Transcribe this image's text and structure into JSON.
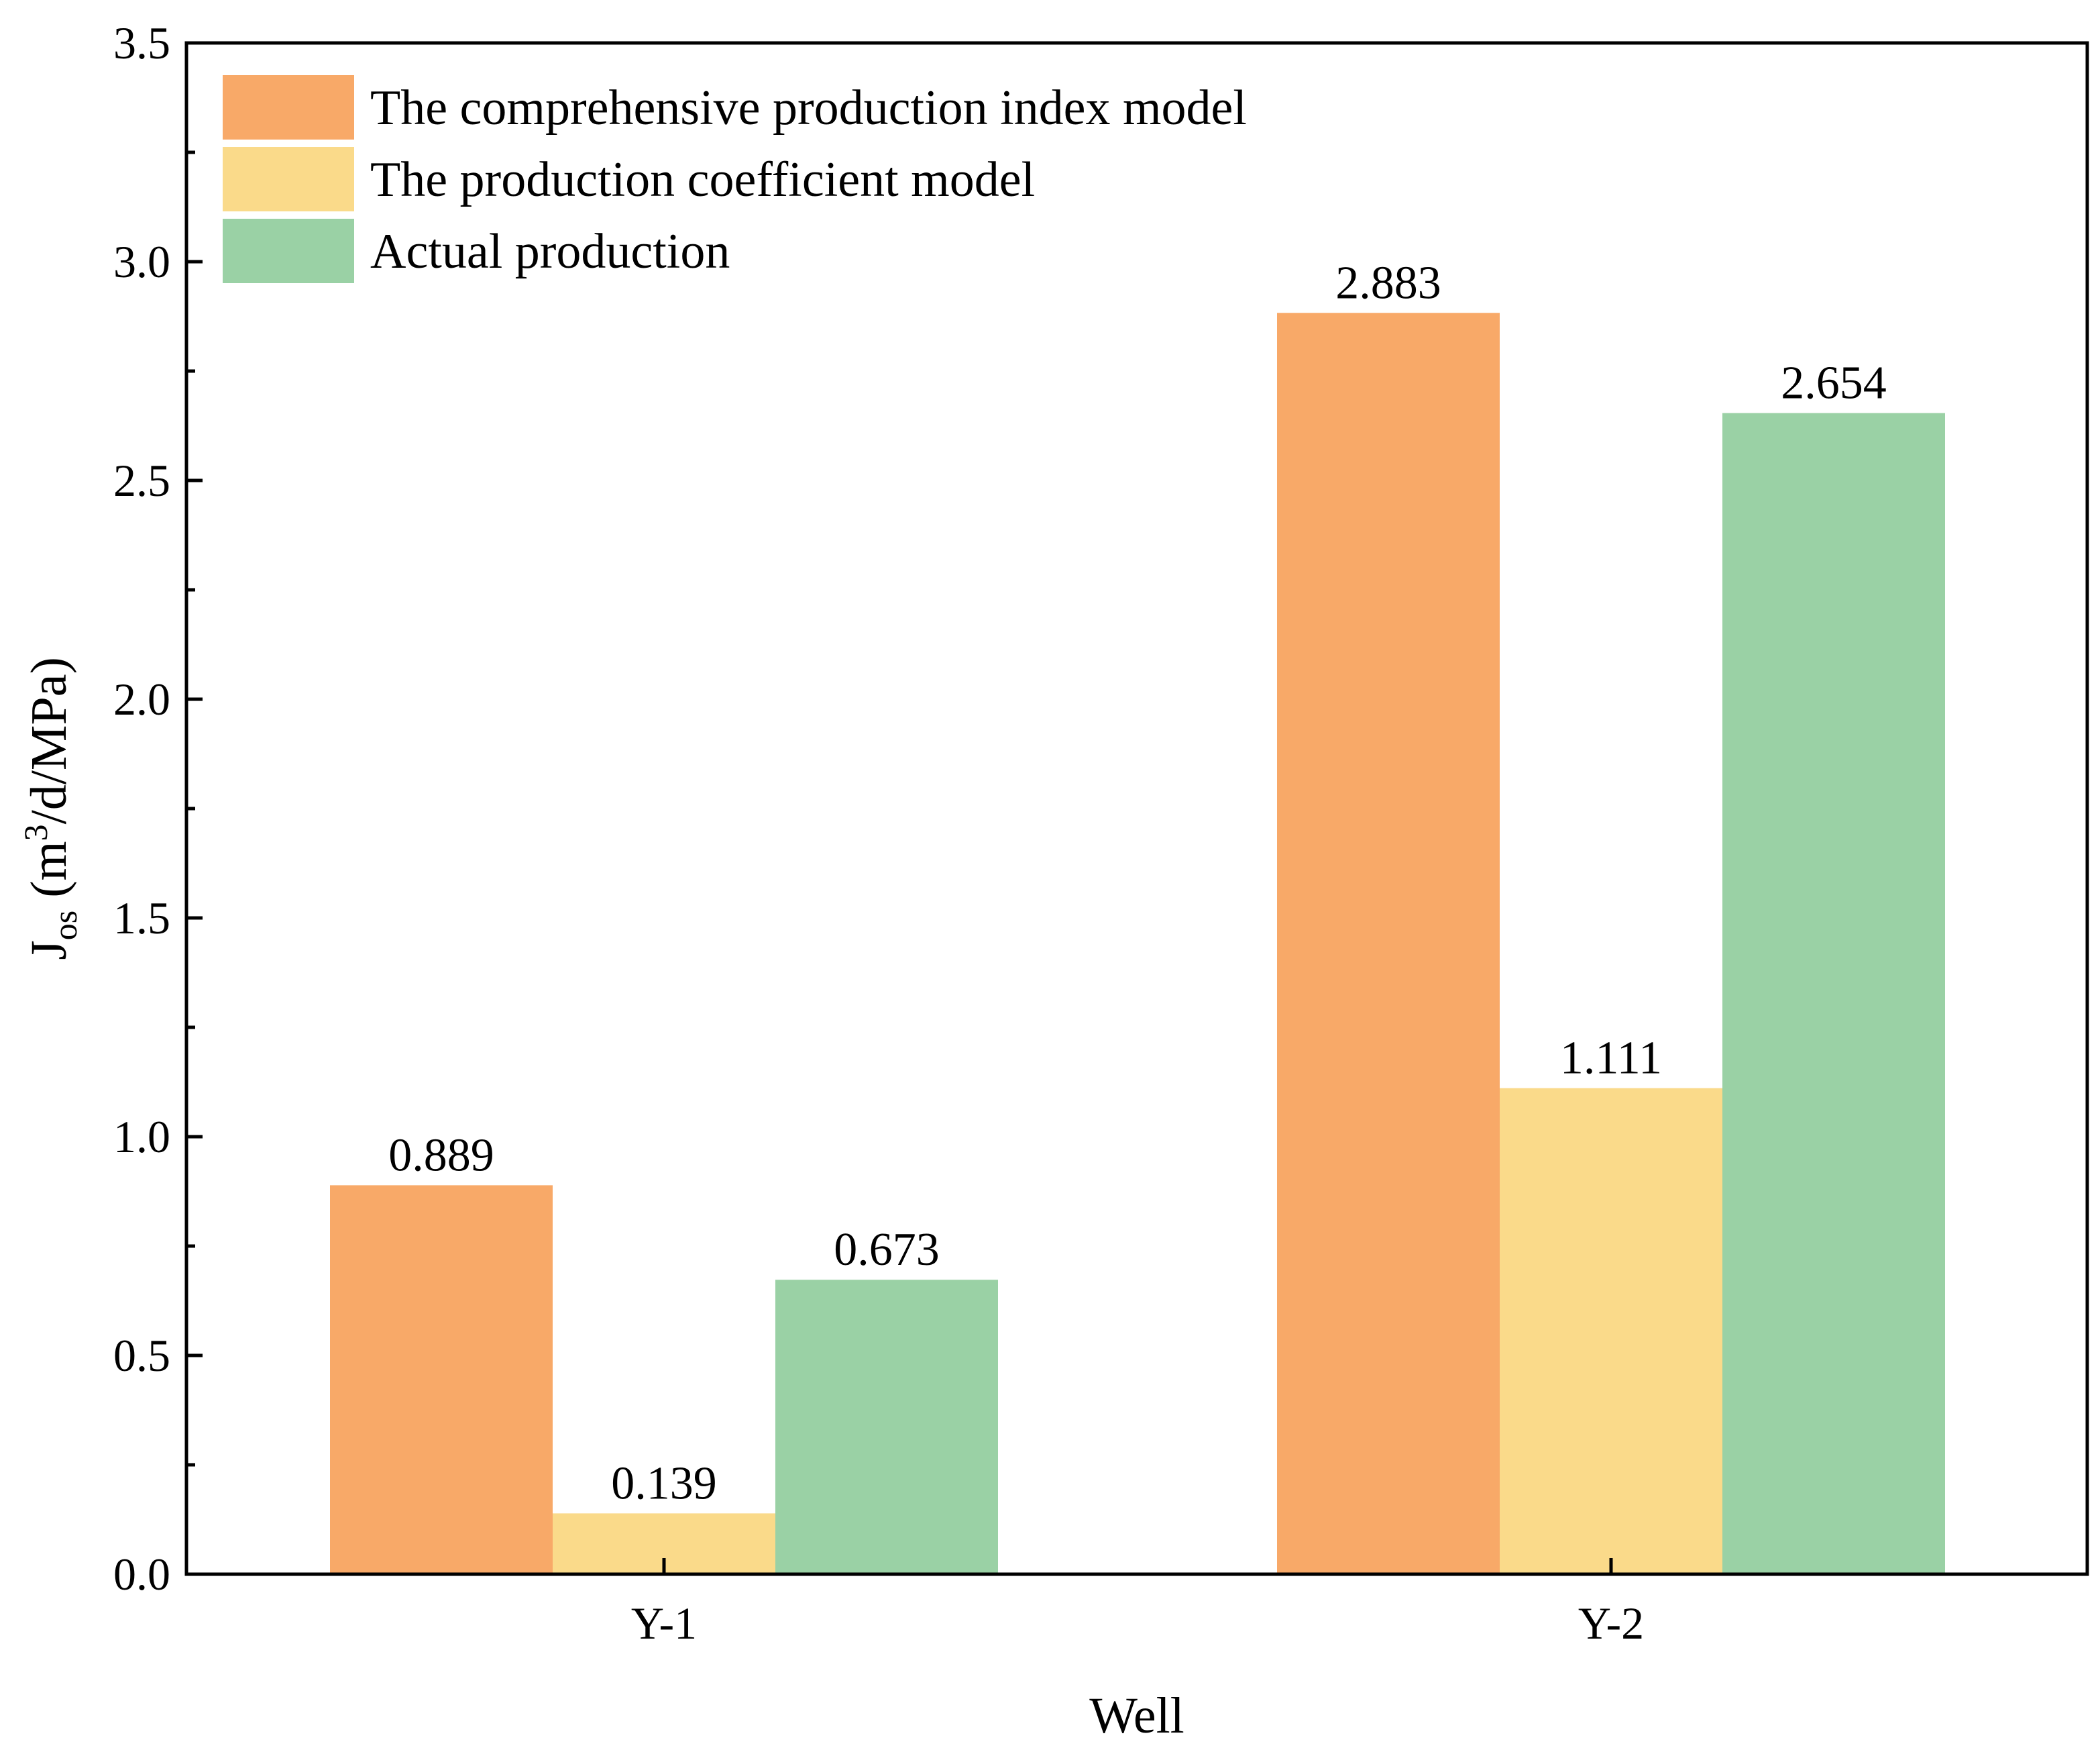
{
  "chart_data": {
    "type": "bar",
    "title": "",
    "xlabel": "Well",
    "ylabel": {
      "main": "J",
      "sub": "os",
      "unit_open": " (m",
      "sup": "3",
      "unit_close": "/d/MPa)"
    },
    "categories": [
      "Y-1",
      "Y-2"
    ],
    "series": [
      {
        "name": "The comprehensive production index model",
        "color": "#F8A968",
        "values": [
          0.889,
          2.883
        ],
        "labels": [
          "0.889",
          "2.883"
        ]
      },
      {
        "name": "The production coefficient model",
        "color": "#FADA8A",
        "values": [
          0.139,
          1.111
        ],
        "labels": [
          "0.139",
          "1.111"
        ]
      },
      {
        "name": "Actual production",
        "color": "#9AD1A5",
        "values": [
          0.673,
          2.654
        ],
        "labels": [
          "0.673",
          "2.654"
        ]
      }
    ],
    "ylim": [
      0,
      3.5
    ],
    "yticks": [
      0.0,
      0.5,
      1.0,
      1.5,
      2.0,
      2.5,
      3.0,
      3.5
    ],
    "ytick_labels": [
      "0.0",
      "0.5",
      "1.0",
      "1.5",
      "2.0",
      "2.5",
      "3.0",
      "3.5"
    ],
    "grid": false,
    "legend_position": "top-left"
  }
}
